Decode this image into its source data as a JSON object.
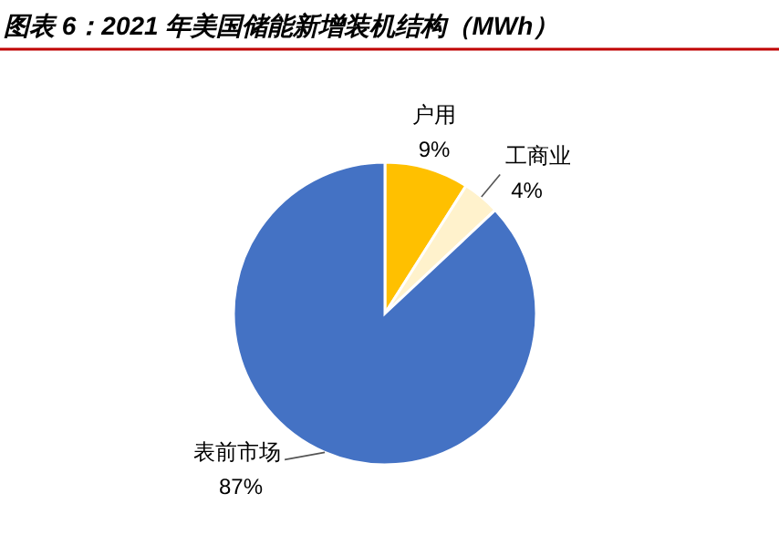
{
  "chart_data": {
    "type": "pie",
    "title": "图表 6：2021 年美国储能新增装机结构（MWh）",
    "categories": [
      "户用",
      "工商业",
      "表前市场"
    ],
    "values": [
      9,
      4,
      87
    ],
    "colors": [
      "#ffc000",
      "#fff2cc",
      "#4472c4"
    ],
    "value_labels": [
      "9%",
      "4%",
      "87%"
    ],
    "legend": false
  }
}
